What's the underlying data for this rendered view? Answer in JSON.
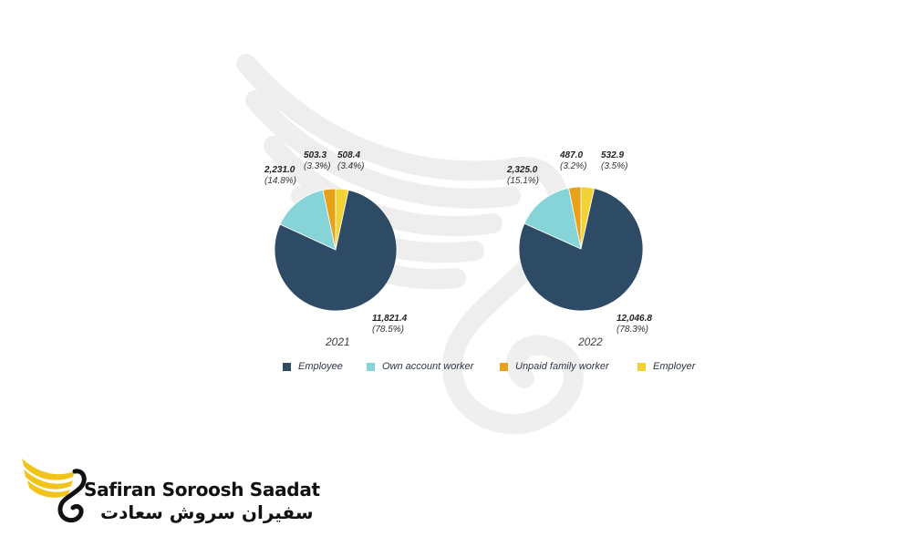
{
  "chart_data": [
    {
      "type": "pie",
      "title": "2021",
      "series": [
        {
          "name": "Employee",
          "value": 11821.4,
          "label": "11,821.4",
          "pct": "(78.5%)"
        },
        {
          "name": "Own account worker",
          "value": 2231.0,
          "label": "2,231.0",
          "pct": "(14.8%)"
        },
        {
          "name": "Unpaid family worker",
          "value": 503.3,
          "label": "503.3",
          "pct": "(3.3%)"
        },
        {
          "name": "Employer",
          "value": 508.4,
          "label": "508.4",
          "pct": "(3.4%)"
        }
      ]
    },
    {
      "type": "pie",
      "title": "2022",
      "series": [
        {
          "name": "Employee",
          "value": 12046.8,
          "label": "12,046.8",
          "pct": "(78.3%)"
        },
        {
          "name": "Own account worker",
          "value": 2325.0,
          "label": "2,325.0",
          "pct": "(15.1%)"
        },
        {
          "name": "Unpaid family worker",
          "value": 487.0,
          "label": "487.0",
          "pct": "(3.2%)"
        },
        {
          "name": "Employer",
          "value": 532.9,
          "label": "532.9",
          "pct": "(3.5%)"
        }
      ]
    }
  ],
  "legend": [
    {
      "label": "Employee",
      "color": "#2e4b66"
    },
    {
      "label": "Own account worker",
      "color": "#86d4d8"
    },
    {
      "label": "Unpaid family worker",
      "color": "#e8a21a"
    },
    {
      "label": "Employer",
      "color": "#f2d335"
    }
  ],
  "logo": {
    "name_en": "Safiran Soroosh Saadat",
    "name_fa": "سفیران سروش سعادت",
    "icon": "winged-s-logo-icon"
  }
}
